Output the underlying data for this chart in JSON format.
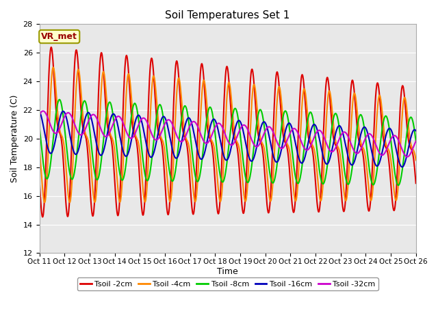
{
  "title": "Soil Temperatures Set 1",
  "xlabel": "Time",
  "ylabel": "Soil Temperature (C)",
  "ylim": [
    12,
    28
  ],
  "yticks": [
    12,
    14,
    16,
    18,
    20,
    22,
    24,
    26,
    28
  ],
  "xtick_labels": [
    "Oct 11",
    "Oct 12",
    "Oct 13",
    "Oct 14",
    "Oct 15",
    "Oct 16",
    "Oct 17",
    "Oct 18",
    "Oct 19",
    "Oct 20",
    "Oct 21",
    "Oct 22",
    "Oct 23",
    "Oct 24",
    "Oct 25",
    "Oct 26"
  ],
  "bg_color": "#e8e8e8",
  "fig_color": "#ffffff",
  "annotation_text": "VR_met",
  "annotation_color": "#990000",
  "annotation_bg": "#ffffcc",
  "annotation_border": "#999900",
  "series_names": [
    "Tsoil -2cm",
    "Tsoil -4cm",
    "Tsoil -8cm",
    "Tsoil -16cm",
    "Tsoil -32cm"
  ],
  "series_colors": [
    "#dd0000",
    "#ff8800",
    "#00cc00",
    "#0000bb",
    "#cc00cc"
  ],
  "series_lw": [
    1.5,
    1.5,
    1.5,
    1.5,
    1.5
  ]
}
